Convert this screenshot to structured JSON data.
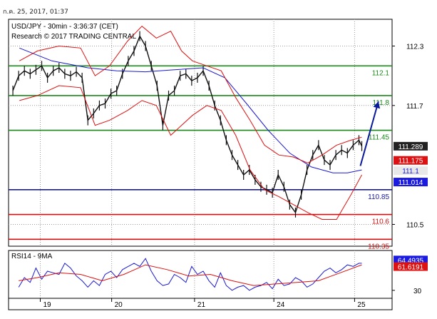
{
  "timestamp": "ก.ค. 25, 2017, 01:37",
  "chart_data": [
    {
      "type": "line",
      "title": "USD/JPY - 30min - 3:36:37 (CET)",
      "subtitle": "Research © 2017 TRADING CENTRAL",
      "ylim": [
        110.28,
        112.57
      ],
      "yticks": [
        112.3,
        111.7,
        110.5
      ],
      "x_ticks": [
        {
          "label": "19",
          "x": 44
        },
        {
          "label": "20",
          "x": 143
        },
        {
          "label": "21",
          "x": 258
        },
        {
          "label": "24",
          "x": 368
        },
        {
          "label": "25",
          "x": 480
        }
      ],
      "x_range": [
        0,
        532
      ],
      "levels": [
        {
          "label": "112.1",
          "value": 112.1,
          "color": "#1a8a1a"
        },
        {
          "label": "111.8",
          "value": 111.8,
          "color": "#1a8a1a"
        },
        {
          "label": "111.45",
          "value": 111.45,
          "color": "#1a8a1a"
        },
        {
          "label": "110.85",
          "value": 110.85,
          "color": "#1a1aa0"
        },
        {
          "label": "110.6",
          "value": 110.6,
          "color": "#d01010"
        },
        {
          "label": "110.35",
          "value": 110.35,
          "color": "#d01010"
        }
      ],
      "price_badges": [
        {
          "label": "111.289",
          "value": 111.289,
          "bg": "#222222"
        },
        {
          "label": "111.175",
          "value": 111.175,
          "bg": "#dd1111"
        },
        {
          "label": "111.1",
          "value": 111.1,
          "bg": "#e8e8e8"
        },
        {
          "label": "111.014",
          "value": 111.014,
          "bg": "#1a1ae0"
        }
      ],
      "arrow": {
        "from": [
          488,
          111.09
        ],
        "to": [
          513,
          111.74
        ],
        "color": "#0a1a9a"
      },
      "series": [
        {
          "kind": "price",
          "x": [
            6,
            14,
            22,
            30,
            38,
            46,
            54,
            62,
            70,
            78,
            86,
            94,
            102,
            110,
            118,
            126,
            134,
            142,
            150,
            158,
            166,
            174,
            182,
            190,
            198,
            206,
            214,
            222,
            230,
            238,
            246,
            254,
            262,
            270,
            278,
            286,
            294,
            302,
            310,
            318,
            326,
            334,
            342,
            350,
            358,
            366,
            374,
            382,
            390,
            398,
            406,
            414,
            422,
            430,
            438,
            446,
            454,
            462,
            470,
            478,
            486,
            490
          ],
          "values": [
            111.85,
            112.0,
            112.05,
            112.02,
            112.06,
            112.1,
            111.98,
            112.05,
            112.08,
            112.02,
            112.0,
            112.04,
            111.98,
            111.55,
            111.62,
            111.7,
            111.72,
            111.82,
            111.85,
            112.02,
            112.15,
            112.25,
            112.4,
            112.3,
            112.1,
            111.9,
            111.5,
            111.8,
            111.85,
            112.0,
            112.02,
            111.95,
            111.98,
            112.05,
            111.9,
            111.7,
            111.55,
            111.35,
            111.2,
            111.1,
            111.0,
            111.05,
            110.95,
            110.88,
            110.85,
            110.82,
            111.0,
            110.88,
            110.7,
            110.62,
            110.8,
            111.05,
            111.2,
            111.3,
            111.15,
            111.1,
            111.2,
            111.25,
            111.22,
            111.3,
            111.35,
            111.29
          ]
        },
        {
          "kind": "ma_blue",
          "x": [
            15,
            60,
            110,
            150,
            190,
            230,
            270,
            300,
            330,
            360,
            390,
            420,
            450,
            470,
            490
          ],
          "values": [
            112.28,
            112.15,
            112.08,
            112.05,
            112.04,
            112.06,
            112.08,
            111.98,
            111.72,
            111.45,
            111.22,
            111.08,
            111.02,
            111.02,
            111.05
          ]
        },
        {
          "kind": "band_upper",
          "x": [
            15,
            40,
            70,
            100,
            120,
            140,
            165,
            185,
            205,
            225,
            240,
            255,
            275,
            295,
            315,
            335,
            355,
            375,
            395,
            415,
            435,
            455,
            475,
            490
          ],
          "values": [
            112.15,
            112.25,
            112.3,
            112.28,
            112.0,
            112.1,
            112.35,
            112.5,
            112.38,
            112.45,
            112.25,
            112.15,
            112.1,
            112.05,
            111.78,
            111.55,
            111.3,
            111.2,
            111.18,
            111.12,
            111.2,
            111.3,
            111.35,
            111.38
          ]
        },
        {
          "kind": "band_lower",
          "x": [
            15,
            40,
            70,
            100,
            120,
            140,
            165,
            185,
            205,
            225,
            240,
            255,
            275,
            295,
            315,
            335,
            355,
            375,
            395,
            415,
            435,
            455,
            475,
            490
          ],
          "values": [
            111.75,
            111.8,
            111.9,
            111.88,
            111.5,
            111.55,
            111.65,
            111.75,
            111.7,
            111.4,
            111.5,
            111.6,
            111.7,
            111.65,
            111.4,
            111.05,
            110.85,
            110.78,
            110.7,
            110.62,
            110.55,
            110.55,
            110.8,
            111.0
          ]
        }
      ]
    },
    {
      "type": "line",
      "title": "RSI14 - 9MA",
      "ylim": [
        20,
        80
      ],
      "yticks": [
        30
      ],
      "badges": [
        {
          "label": "64.4935",
          "value": 64.4935,
          "bg": "#1a1ae0"
        },
        {
          "label": "61.6191",
          "value": 61.6191,
          "bg": "#dd1111"
        }
      ],
      "series": [
        {
          "kind": "rsi",
          "x": [
            14,
            22,
            30,
            38,
            46,
            54,
            62,
            70,
            78,
            86,
            94,
            102,
            110,
            118,
            126,
            134,
            142,
            150,
            158,
            166,
            174,
            182,
            190,
            198,
            206,
            214,
            222,
            230,
            238,
            246,
            254,
            262,
            270,
            278,
            286,
            294,
            302,
            310,
            318,
            326,
            334,
            342,
            350,
            358,
            366,
            374,
            382,
            390,
            398,
            406,
            414,
            422,
            430,
            438,
            446,
            454,
            462,
            470,
            478,
            486,
            490
          ],
          "values": [
            34,
            46,
            40,
            58,
            44,
            54,
            52,
            50,
            64,
            58,
            48,
            42,
            34,
            42,
            36,
            50,
            54,
            46,
            56,
            60,
            64,
            60,
            70,
            54,
            42,
            36,
            38,
            50,
            46,
            40,
            60,
            50,
            54,
            42,
            34,
            52,
            36,
            30,
            34,
            36,
            30,
            34,
            36,
            40,
            32,
            44,
            36,
            38,
            46,
            42,
            34,
            38,
            46,
            54,
            58,
            52,
            56,
            62,
            60,
            64,
            64
          ]
        },
        {
          "kind": "rsi_ma",
          "x": [
            14,
            40,
            70,
            100,
            130,
            160,
            190,
            220,
            250,
            280,
            310,
            340,
            370,
            400,
            430,
            460,
            490
          ],
          "values": [
            42,
            46,
            52,
            50,
            42,
            50,
            62,
            56,
            48,
            50,
            42,
            36,
            38,
            40,
            42,
            52,
            62
          ]
        }
      ]
    }
  ]
}
